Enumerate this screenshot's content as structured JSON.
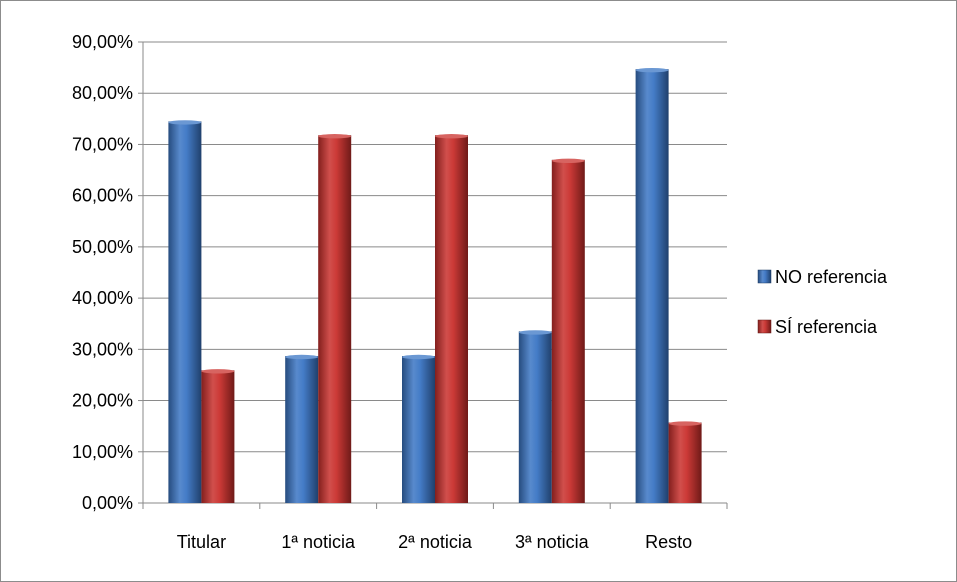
{
  "chart_data": {
    "type": "bar",
    "title": "",
    "xlabel": "",
    "ylabel": "",
    "categories": [
      "Titular",
      "1ª noticia",
      "2ª noticia",
      "3ª noticia",
      "Resto"
    ],
    "series": [
      {
        "name": "NO referencia",
        "values": [
          74.5,
          28.7,
          28.7,
          33.5,
          84.7
        ],
        "color": "#3a75c4"
      },
      {
        "name": "SÍ referencia",
        "values": [
          25.9,
          71.8,
          71.8,
          67.0,
          15.7
        ],
        "color": "#c9302c"
      }
    ],
    "ylim": [
      0,
      90
    ],
    "ytick_values": [
      0,
      10,
      20,
      30,
      40,
      50,
      60,
      70,
      80,
      90
    ],
    "ytick_labels": [
      "0,00%",
      "10,00%",
      "20,00%",
      "30,00%",
      "40,00%",
      "50,00%",
      "60,00%",
      "70,00%",
      "80,00%",
      "90,00%"
    ],
    "grid": true,
    "legend_position": "right"
  }
}
